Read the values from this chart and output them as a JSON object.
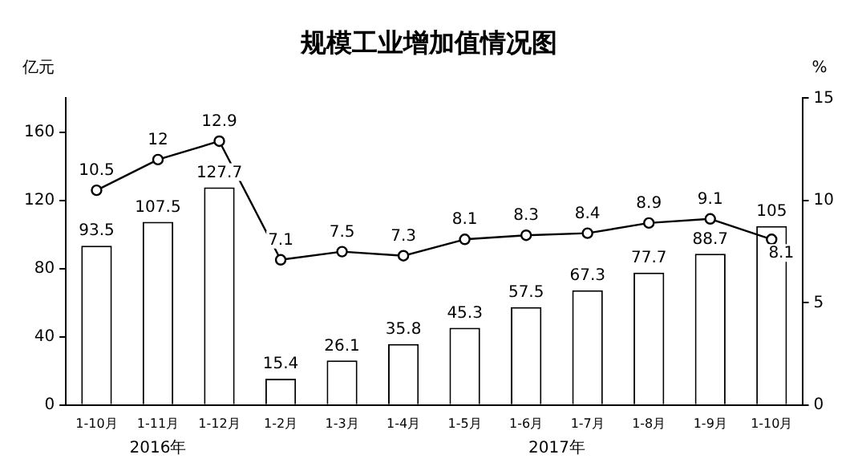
{
  "chart_data": {
    "type": "bar",
    "title": "规模工业增加值情况图",
    "ylabel": "亿元",
    "y2label": "%",
    "categories": [
      "1-10月",
      "1-11月",
      "1-12月",
      "1-2月",
      "1-3月",
      "1-4月",
      "1-5月",
      "1-6月",
      "1-7月",
      "1-8月",
      "1-9月",
      "1-10月"
    ],
    "series": [
      {
        "color": "#ffffff",
        "values": [
          93.5,
          107.5,
          127.7,
          15.4,
          26.1,
          35.8,
          45.3,
          57.5,
          67.3,
          77.7,
          88.7,
          105
        ]
      },
      {
        "type": "line",
        "axis": "y2",
        "color": "#000000",
        "marker": "circle",
        "values": [
          10.5,
          12,
          12.9,
          7.1,
          7.5,
          7.3,
          8.1,
          8.3,
          8.4,
          8.9,
          9.1,
          8.1
        ]
      }
    ],
    "ylim": [
      0,
      180
    ],
    "yticks": [
      0,
      40,
      80,
      120,
      160
    ],
    "y2lim": [
      0,
      15
    ],
    "y2ticks": [
      0,
      5,
      10,
      15
    ],
    "data_labels": true,
    "grid": false,
    "legend": false,
    "annotations": [
      "2016年",
      "2017年"
    ]
  }
}
